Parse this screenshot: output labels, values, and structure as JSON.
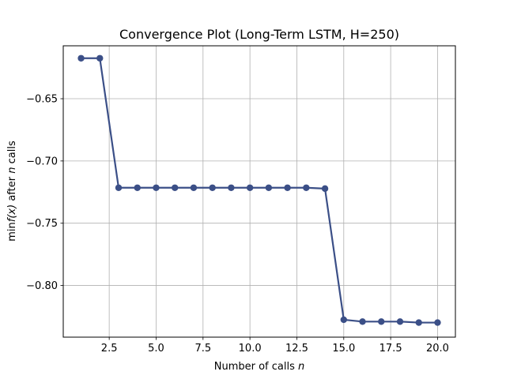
{
  "chart_data": {
    "type": "line",
    "title": "Convergence Plot (Long-Term LSTM, H=250)",
    "xlabel_text": "Number of calls ",
    "xlabel_italic": "n",
    "ylabel_prefix": "min",
    "ylabel_fx": "f(x)",
    "ylabel_mid": " after ",
    "ylabel_n": "n",
    "ylabel_suffix": " calls",
    "xlim": [
      0.05,
      20.95
    ],
    "ylim": [
      -0.8415,
      -0.6075
    ],
    "xticks": [
      2.5,
      5.0,
      7.5,
      10.0,
      12.5,
      15.0,
      17.5,
      20.0
    ],
    "xtick_labels": [
      "2.5",
      "5.0",
      "7.5",
      "10.0",
      "12.5",
      "15.0",
      "17.5",
      "20.0"
    ],
    "yticks": [
      -0.65,
      -0.7,
      -0.75,
      -0.8
    ],
    "ytick_labels": [
      "−0.65",
      "−0.70",
      "−0.75",
      "−0.80"
    ],
    "grid": true,
    "line_color": "#3b4f87",
    "series": [
      {
        "x": [
          1,
          2,
          3,
          4,
          5,
          6,
          7,
          8,
          9,
          10,
          11,
          12,
          13,
          14,
          15,
          16,
          17,
          18,
          19,
          20
        ],
        "values": [
          -0.6175,
          -0.6175,
          -0.7215,
          -0.7215,
          -0.7215,
          -0.7215,
          -0.7215,
          -0.7215,
          -0.7215,
          -0.7215,
          -0.7215,
          -0.7215,
          -0.7215,
          -0.7222,
          -0.8275,
          -0.829,
          -0.829,
          -0.829,
          -0.8298,
          -0.8298
        ]
      }
    ]
  }
}
